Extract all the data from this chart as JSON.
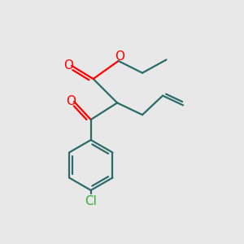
{
  "bg_color": "#e8e8e8",
  "bond_color": "#2d6b6b",
  "O_color": "#ff0000",
  "Cl_color": "#3aaa3a",
  "line_width": 1.6,
  "font_size_atom": 11,
  "xlim": [
    0,
    10
  ],
  "ylim": [
    0,
    10
  ]
}
